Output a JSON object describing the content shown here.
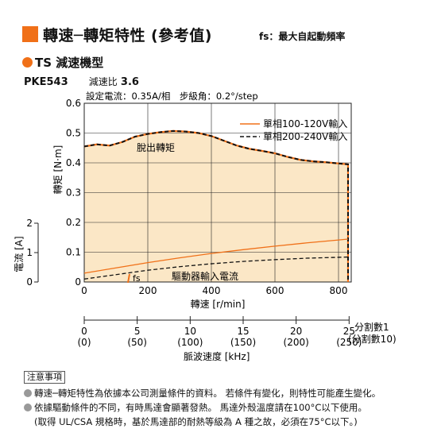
{
  "title": {
    "main": "轉速─轉矩特性 (參考值)",
    "sub": "fs：最大自起動頻率"
  },
  "model": "TS 減速機型",
  "product": {
    "name": "PKE543",
    "ratio_label": "減速比",
    "ratio_value": "3.6"
  },
  "settings": "設定電流：0.35A/相　步級角：0.2°/step",
  "chart_data": {
    "type": "line",
    "xlabel": "轉速 [r/min]",
    "ylabel_torque": "轉矩 [N·m]",
    "ylabel_current": "電流 [A]",
    "xlim": [
      0,
      840
    ],
    "ylim_torque": [
      0,
      0.6
    ],
    "ylim_current": [
      0,
      2
    ],
    "x_ticks": [
      "0",
      "200",
      "400",
      "600",
      "800"
    ],
    "torque_ticks": [
      "0",
      "0.1",
      "0.2",
      "0.3",
      "0.4",
      "0.5",
      "0.6"
    ],
    "current_ticks": [
      "0",
      "1",
      "2"
    ],
    "legend": [
      "單相100-120V輸入",
      "單相200-240V輸入"
    ],
    "annotations": {
      "pullout": "脫出轉矩",
      "driver_current": "驅動器輸入電流",
      "fs": "fs"
    },
    "shaded_area_color": "#fbe7c6",
    "colors": {
      "v100": "#f07018",
      "v200": "#111111"
    },
    "series": [
      {
        "name": "單相100-120V輸入",
        "kind": "pullout_torque",
        "x": [
          0,
          40,
          80,
          120,
          160,
          200,
          240,
          280,
          320,
          360,
          400,
          440,
          480,
          520,
          560,
          600,
          640,
          680,
          720,
          760,
          800,
          830
        ],
        "values": [
          0.455,
          0.462,
          0.458,
          0.47,
          0.488,
          0.497,
          0.503,
          0.507,
          0.505,
          0.5,
          0.49,
          0.474,
          0.458,
          0.447,
          0.44,
          0.432,
          0.42,
          0.41,
          0.405,
          0.402,
          0.398,
          0.395
        ]
      },
      {
        "name": "單相200-240V輸入",
        "kind": "pullout_torque",
        "x": [
          0,
          40,
          80,
          120,
          160,
          200,
          240,
          280,
          320,
          360,
          400,
          440,
          480,
          520,
          560,
          600,
          640,
          680,
          720,
          760,
          800,
          830
        ],
        "values": [
          0.455,
          0.462,
          0.458,
          0.47,
          0.488,
          0.497,
          0.503,
          0.507,
          0.505,
          0.5,
          0.49,
          0.474,
          0.458,
          0.447,
          0.44,
          0.432,
          0.42,
          0.41,
          0.405,
          0.402,
          0.398,
          0.395
        ]
      },
      {
        "name": "單相100-120V輸入",
        "kind": "driver_input_current",
        "x": [
          0,
          100,
          200,
          300,
          400,
          500,
          600,
          700,
          800,
          830
        ],
        "values": [
          0.3,
          0.48,
          0.66,
          0.82,
          0.97,
          1.1,
          1.22,
          1.33,
          1.43,
          1.46
        ]
      },
      {
        "name": "單相200-240V輸入",
        "kind": "driver_input_current",
        "x": [
          0,
          100,
          200,
          300,
          400,
          500,
          600,
          700,
          800,
          830
        ],
        "values": [
          0.1,
          0.25,
          0.4,
          0.52,
          0.62,
          0.7,
          0.76,
          0.81,
          0.84,
          0.85
        ]
      }
    ],
    "fs_x": 140,
    "pulse_axis": {
      "label": "脈波速度 [kHz]",
      "ticks": [
        0,
        5,
        10,
        15,
        20,
        25
      ],
      "tick_labels_1": [
        "0",
        "5",
        "10",
        "15",
        "20",
        "25"
      ],
      "tick_labels_10": [
        "(0)",
        "(50)",
        "(100)",
        "(150)",
        "(200)",
        "(250)"
      ],
      "division_1": "分割數1",
      "division_10": "(分割數10)"
    }
  },
  "notes": {
    "header": "注意事項",
    "lines": [
      "轉速─轉矩特性為依據本公司測量條件的資料。 若條件有變化，則特性可能產生變化。",
      "依據驅動條件的不同，有時馬達會顯著發熱。 馬達外殼溫度請在100°C以下使用。",
      "(取得 UL/CSA 規格時，基於馬達部的耐熱等級為 A 種之故，必須在75°C以下。)"
    ]
  }
}
